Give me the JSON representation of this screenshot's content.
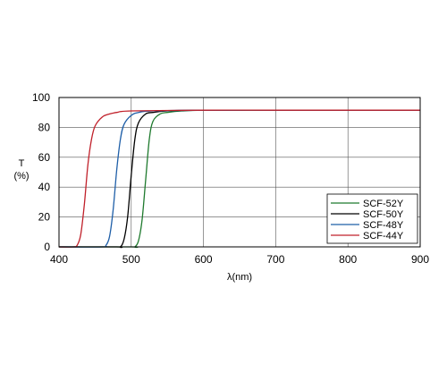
{
  "chart_data": {
    "type": "line",
    "xlabel": "λ(nm)",
    "ylabel_top": "T",
    "ylabel_bottom": "(%)",
    "xlim": [
      400,
      900
    ],
    "ylim": [
      0,
      100
    ],
    "xticks": [
      400,
      500,
      600,
      700,
      800,
      900
    ],
    "yticks": [
      0,
      20,
      40,
      60,
      80,
      100
    ],
    "grid": true,
    "legend_position": "bottom-right",
    "series": [
      {
        "name": "SCF-52Y",
        "color": "#1f7a2e",
        "points": [
          [
            400,
            0
          ],
          [
            500,
            0
          ],
          [
            505,
            0
          ],
          [
            510,
            4
          ],
          [
            515,
            18
          ],
          [
            520,
            45
          ],
          [
            525,
            72
          ],
          [
            530,
            84
          ],
          [
            540,
            89
          ],
          [
            550,
            90
          ],
          [
            570,
            91
          ],
          [
            600,
            91.5
          ],
          [
            700,
            91.5
          ],
          [
            800,
            91.5
          ],
          [
            900,
            91.5
          ]
        ]
      },
      {
        "name": "SCF-50Y",
        "color": "#000000",
        "points": [
          [
            400,
            0
          ],
          [
            480,
            0
          ],
          [
            485,
            0
          ],
          [
            490,
            5
          ],
          [
            495,
            20
          ],
          [
            500,
            48
          ],
          [
            505,
            72
          ],
          [
            510,
            83
          ],
          [
            520,
            89
          ],
          [
            530,
            90
          ],
          [
            550,
            91
          ],
          [
            600,
            91.5
          ],
          [
            700,
            91.5
          ],
          [
            800,
            91.5
          ],
          [
            900,
            91.5
          ]
        ]
      },
      {
        "name": "SCF-48Y",
        "color": "#1f5fa8",
        "points": [
          [
            400,
            0
          ],
          [
            460,
            0
          ],
          [
            465,
            1
          ],
          [
            470,
            7
          ],
          [
            475,
            25
          ],
          [
            480,
            52
          ],
          [
            485,
            72
          ],
          [
            490,
            82
          ],
          [
            500,
            88
          ],
          [
            510,
            90
          ],
          [
            530,
            91
          ],
          [
            600,
            91.5
          ],
          [
            700,
            91.5
          ],
          [
            800,
            91.5
          ],
          [
            900,
            91.5
          ]
        ]
      },
      {
        "name": "SCF-44Y",
        "color": "#c0202a",
        "points": [
          [
            400,
            0
          ],
          [
            420,
            0
          ],
          [
            425,
            1
          ],
          [
            430,
            8
          ],
          [
            435,
            28
          ],
          [
            440,
            55
          ],
          [
            445,
            72
          ],
          [
            450,
            81
          ],
          [
            460,
            87
          ],
          [
            470,
            89
          ],
          [
            480,
            90
          ],
          [
            500,
            91
          ],
          [
            600,
            91.5
          ],
          [
            700,
            91.5
          ],
          [
            800,
            91.5
          ],
          [
            900,
            91.5
          ]
        ]
      }
    ]
  }
}
